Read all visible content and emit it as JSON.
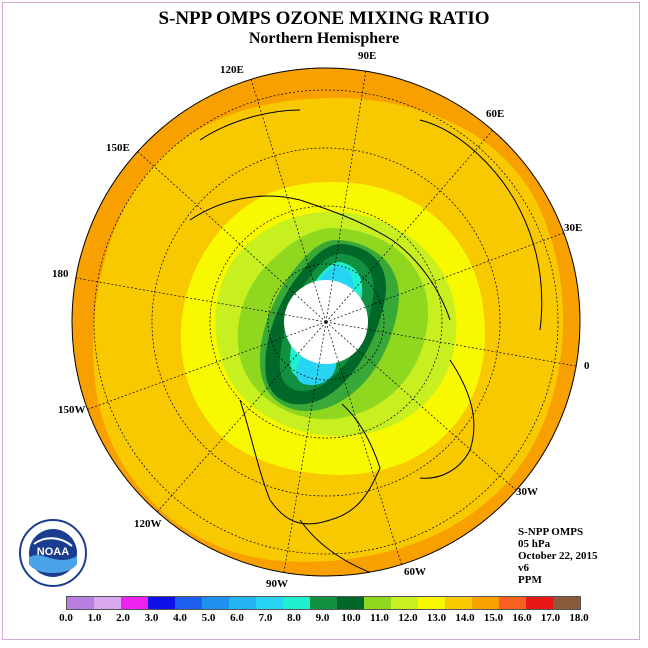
{
  "title": "S-NPP OMPS OZONE MIXING RATIO",
  "subtitle": "Northern Hemisphere",
  "longitude_labels": [
    "90E",
    "60E",
    "30E",
    "0",
    "30W",
    "60W",
    "90W",
    "120W",
    "150W",
    "180",
    "150E",
    "120E"
  ],
  "info": [
    "S-NPP OMPS",
    "05 hPa",
    "October 22, 2015",
    "v6",
    "PPM"
  ],
  "logo_text": "NOAA",
  "colorbar": {
    "ticks": [
      "0.0",
      "1.0",
      "2.0",
      "3.0",
      "4.0",
      "5.0",
      "6.0",
      "7.0",
      "8.0",
      "9.0",
      "10.0",
      "11.0",
      "12.0",
      "13.0",
      "14.0",
      "15.0",
      "16.0",
      "17.0",
      "18.0"
    ],
    "colors": [
      "#b87ee0",
      "#d8a8ee",
      "#ee22ee",
      "#1010e8",
      "#1e5eee",
      "#1e90f0",
      "#24b4f0",
      "#28d4f4",
      "#20f0d0",
      "#109040",
      "#006828",
      "#90d820",
      "#c8f020",
      "#f8f800",
      "#f8c800",
      "#f8a000",
      "#f86020",
      "#e81818",
      "#8b5a3c"
    ]
  },
  "map_fill_colors": {
    "outer": "#f8a000",
    "ring14": "#f8c800",
    "ring13": "#f8f800",
    "ring12": "#c8f020",
    "ring11": "#90d820",
    "ring10": "#38a838",
    "ring9": "#006828",
    "ring8": "#109040",
    "ring7": "#28d4f4",
    "ring6": "#20f0d0",
    "pole": "#ffffff"
  }
}
